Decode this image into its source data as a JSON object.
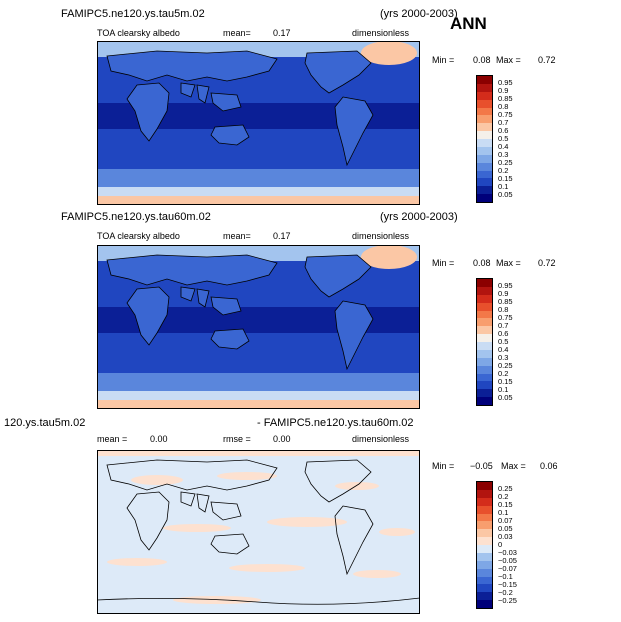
{
  "season": "ANN",
  "panels": [
    {
      "title_left": "FAMIPC5.ne120.ys.tau5m.02",
      "title_right": "(yrs 2000-2003)",
      "variable": "TOA clearsky albedo",
      "mean_label": "mean=",
      "mean_value": "0.17",
      "units": "dimensionless",
      "min_label": "Min =",
      "min_value": "0.08",
      "max_label": "Max =",
      "max_value": "0.72"
    },
    {
      "title_left": "FAMIPC5.ne120.ys.tau60m.02",
      "title_right": "(yrs 2000-2003)",
      "variable": "TOA clearsky albedo",
      "mean_label": "mean=",
      "mean_value": "0.17",
      "units": "dimensionless",
      "min_label": "Min =",
      "min_value": "0.08",
      "max_label": "Max =",
      "max_value": "0.72"
    },
    {
      "title_left": "120.ys.tau5m.02",
      "title_right": "- FAMIPC5.ne120.ys.tau60m.02",
      "mean_label": "mean =",
      "mean_value": "0.00",
      "rmse_label": "rmse =",
      "rmse_value": "0.00",
      "units": "dimensionless",
      "min_label": "Min =",
      "min_value": "−0.05",
      "max_label": "Max =",
      "max_value": "0.06"
    }
  ],
  "colorbars": [
    {
      "labels": [
        "0.95",
        "0.9",
        "0.85",
        "0.8",
        "0.75",
        "0.7",
        "0.6",
        "0.5",
        "0.4",
        "0.3",
        "0.25",
        "0.2",
        "0.15",
        "0.1",
        "0.05"
      ],
      "colors": [
        "#8b0000",
        "#b2140f",
        "#d42c1b",
        "#e8502c",
        "#f37848",
        "#f89e6e",
        "#fbc7a5",
        "#f5f0ea",
        "#c9dcf4",
        "#a3c4ee",
        "#7ea7e6",
        "#5a86dc",
        "#3a66d2",
        "#2046c0",
        "#0b1f96",
        "#00007a"
      ]
    },
    {
      "labels": [
        "0.95",
        "0.9",
        "0.85",
        "0.8",
        "0.75",
        "0.7",
        "0.6",
        "0.5",
        "0.4",
        "0.3",
        "0.25",
        "0.2",
        "0.15",
        "0.1",
        "0.05"
      ],
      "colors": [
        "#8b0000",
        "#b2140f",
        "#d42c1b",
        "#e8502c",
        "#f37848",
        "#f89e6e",
        "#fbc7a5",
        "#f5f0ea",
        "#c9dcf4",
        "#a3c4ee",
        "#7ea7e6",
        "#5a86dc",
        "#3a66d2",
        "#2046c0",
        "#0b1f96",
        "#00007a"
      ]
    },
    {
      "labels": [
        "0.25",
        "0.2",
        "0.15",
        "0.1",
        "0.07",
        "0.05",
        "0.03",
        "0",
        "−0.03",
        "−0.05",
        "−0.07",
        "−0.1",
        "−0.15",
        "−0.2",
        "−0.25"
      ],
      "colors": [
        "#8b0000",
        "#b2140f",
        "#d42c1b",
        "#e8502c",
        "#f37848",
        "#f89e6e",
        "#fbc7a5",
        "#fde1d0",
        "#ddeaf8",
        "#a3c4ee",
        "#7ea7e6",
        "#5a86dc",
        "#3a66d2",
        "#2046c0",
        "#0b1f96",
        "#00007a"
      ]
    }
  ],
  "chart_data": [
    {
      "type": "heatmap",
      "title": "FAMIPC5.ne120.ys.tau5m.02",
      "variable": "TOA clearsky albedo",
      "mean": 0.17,
      "min": 0.08,
      "max": 0.72,
      "contour_levels": [
        0.05,
        0.1,
        0.15,
        0.2,
        0.25,
        0.3,
        0.4,
        0.5,
        0.6,
        0.7,
        0.75,
        0.8,
        0.85,
        0.9,
        0.95
      ]
    },
    {
      "type": "heatmap",
      "title": "FAMIPC5.ne120.ys.tau60m.02",
      "variable": "TOA clearsky albedo",
      "mean": 0.17,
      "min": 0.08,
      "max": 0.72,
      "contour_levels": [
        0.05,
        0.1,
        0.15,
        0.2,
        0.25,
        0.3,
        0.4,
        0.5,
        0.6,
        0.7,
        0.75,
        0.8,
        0.85,
        0.9,
        0.95
      ]
    },
    {
      "type": "heatmap",
      "title": "120.ys.tau5m.02 - FAMIPC5.ne120.ys.tau60m.02",
      "mean": 0.0,
      "rmse": 0.0,
      "min": -0.05,
      "max": 0.06,
      "contour_levels": [
        -0.25,
        -0.2,
        -0.15,
        -0.1,
        -0.07,
        -0.05,
        -0.03,
        0,
        0.03,
        0.05,
        0.07,
        0.1,
        0.15,
        0.2,
        0.25
      ]
    }
  ]
}
